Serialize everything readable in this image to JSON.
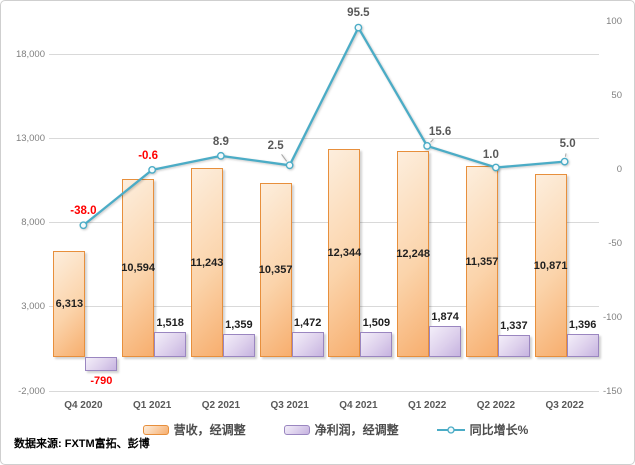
{
  "source_note": {
    "text": "数据来源: FXTM富拓、彭博"
  },
  "colors": {
    "revenue_fill_light": "#fdeedd",
    "revenue_fill_dark": "#f7ae6e",
    "revenue_border": "#e78f3c",
    "profit_fill_light": "#f3eef9",
    "profit_fill_dark": "#c6b3e0",
    "profit_border": "#9a86c0",
    "growth_line": "#4bacc6",
    "negative_label": "#ff0000",
    "positive_label": "#595959",
    "gridline": "#d9d9d9",
    "axis_tick_text": "#7f7f7f"
  },
  "chart_data": {
    "type": "bar",
    "subtype": "combo-bar-line",
    "grid": true,
    "legend_position": "bottom",
    "categories": [
      "Q4 2020",
      "Q1 2021",
      "Q2 2021",
      "Q3 2021",
      "Q4 2021",
      "Q1 2022",
      "Q2 2022",
      "Q3 2022"
    ],
    "series": [
      {
        "name": "营收，经调整",
        "chart_type": "bar",
        "axis": "left",
        "values": [
          6313,
          10594,
          11243,
          10357,
          12344,
          12248,
          11357,
          10871
        ],
        "value_labels": [
          "6,313",
          "10,594",
          "11,243",
          "10,357",
          "12,344",
          "12,248",
          "11,357",
          "10,871"
        ]
      },
      {
        "name": "净利润，经调整",
        "chart_type": "bar",
        "axis": "left",
        "values": [
          -790,
          1518,
          1359,
          1472,
          1509,
          1874,
          1337,
          1396
        ],
        "value_labels": [
          "-790",
          "1,518",
          "1,359",
          "1,472",
          "1,509",
          "1,874",
          "1,337",
          "1,396"
        ]
      },
      {
        "name": "同比增长%",
        "chart_type": "line",
        "axis": "right",
        "values": [
          -38.0,
          -0.6,
          8.9,
          2.5,
          95.5,
          15.6,
          1.0,
          5.0
        ],
        "value_labels": [
          "-38.0",
          "-0.6",
          "8.9",
          "2.5",
          "95.5",
          "15.6",
          "1.0",
          "5.0"
        ]
      }
    ],
    "left_axis": {
      "min": -2000,
      "max": 18000,
      "ticks": [
        18000,
        13000,
        8000,
        3000,
        -2000
      ],
      "tick_labels": [
        "18,000",
        "13,000",
        "8,000",
        "3,000",
        "-2,000"
      ]
    },
    "right_axis": {
      "min": -150,
      "max": 100,
      "ticks": [
        100,
        50,
        0,
        -50,
        -100,
        -150
      ],
      "tick_labels": [
        "100",
        "50",
        "0",
        "-50",
        "-100",
        "-150"
      ]
    }
  }
}
